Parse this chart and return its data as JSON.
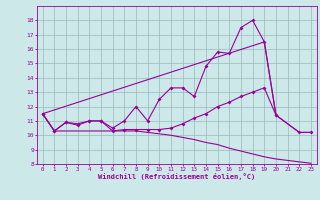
{
  "xlabel": "Windchill (Refroidissement éolien,°C)",
  "xlim": [
    -0.5,
    23.5
  ],
  "ylim": [
    8,
    19
  ],
  "yticks": [
    8,
    9,
    10,
    11,
    12,
    13,
    14,
    15,
    16,
    17,
    18
  ],
  "xticks": [
    0,
    1,
    2,
    3,
    4,
    5,
    6,
    7,
    8,
    9,
    10,
    11,
    12,
    13,
    14,
    15,
    16,
    17,
    18,
    19,
    20,
    21,
    22,
    23
  ],
  "bg_color": "#cce8e8",
  "line_color": "#990099",
  "grid_color": "#99bbbb",
  "series_bottom": {
    "x": [
      0,
      1,
      2,
      3,
      4,
      5,
      6,
      7,
      8,
      9,
      10,
      11,
      12,
      13,
      14,
      15,
      16,
      17,
      18,
      19,
      20,
      22,
      23
    ],
    "y": [
      11.5,
      10.3,
      10.3,
      10.3,
      10.3,
      10.3,
      10.3,
      10.3,
      10.3,
      10.2,
      10.1,
      10.0,
      9.85,
      9.7,
      9.5,
      9.35,
      9.1,
      8.9,
      8.7,
      8.5,
      8.35,
      8.15,
      8.05
    ]
  },
  "series_straight": {
    "x": [
      0,
      19,
      20,
      22,
      23
    ],
    "y": [
      11.5,
      16.5,
      11.4,
      10.2,
      10.2
    ]
  },
  "series_wiggly": {
    "x": [
      0,
      1,
      2,
      3,
      4,
      5,
      6,
      7,
      8,
      9,
      10,
      11,
      12,
      13,
      14,
      15,
      16,
      17,
      18,
      19,
      20,
      22,
      23
    ],
    "y": [
      11.5,
      10.3,
      10.9,
      10.8,
      11.0,
      11.0,
      10.5,
      11.0,
      12.0,
      11.0,
      12.5,
      13.3,
      13.3,
      12.7,
      14.8,
      15.8,
      15.7,
      17.5,
      18.0,
      16.5,
      11.4,
      10.2,
      10.2
    ]
  },
  "series_rising": {
    "x": [
      0,
      1,
      2,
      3,
      4,
      5,
      6,
      7,
      8,
      9,
      10,
      11,
      12,
      13,
      14,
      15,
      16,
      17,
      18,
      19,
      20
    ],
    "y": [
      11.5,
      10.3,
      10.9,
      10.7,
      11.0,
      11.0,
      10.3,
      10.4,
      10.4,
      10.4,
      10.4,
      10.5,
      10.8,
      11.2,
      11.5,
      12.0,
      12.3,
      12.7,
      13.0,
      13.3,
      11.4
    ]
  }
}
